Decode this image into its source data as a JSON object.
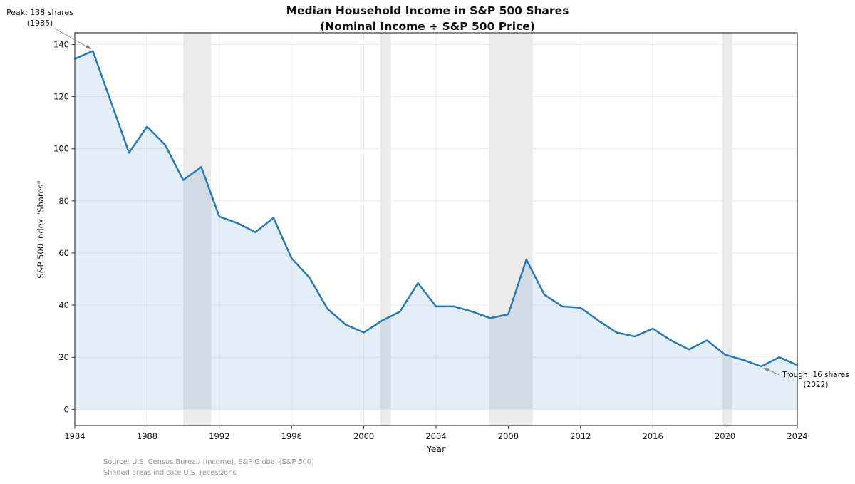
{
  "title": {
    "line1": "Median Household Income in S&P 500 Shares",
    "line2": "(Nominal Income ÷ S&P 500 Price)"
  },
  "axes": {
    "xlabel": "Year",
    "ylabel": "S&P 500 Index \"Shares\""
  },
  "annotations": {
    "peak": {
      "line1": "Peak: 138 shares",
      "line2": "(1985)"
    },
    "trough": {
      "line1": "Trough: 16 shares",
      "line2": "(2022)"
    }
  },
  "source": {
    "line1": "Source: U.S. Census Bureau (Income), S&P Global (S&P 500)",
    "line2": "Shaded areas indicate U.S. recessions"
  },
  "colors": {
    "line": "#2878b4",
    "fill": "rgba(31,119,180,0.12)",
    "recession": "#eaeaea",
    "grid": "#ececec",
    "spine": "#4a4a4a",
    "tick": "#333333",
    "text": "#1a1a1a",
    "arrow": "#888888"
  },
  "chart_data": {
    "type": "area",
    "title": "Median Household Income in S&P 500 Shares (Nominal Income ÷ S&P 500 Price)",
    "xlabel": "Year",
    "ylabel": "S&P 500 Index \"Shares\"",
    "x": [
      1984,
      1985,
      1986,
      1987,
      1988,
      1989,
      1990,
      1991,
      1992,
      1993,
      1994,
      1995,
      1996,
      1997,
      1998,
      1999,
      2000,
      2001,
      2002,
      2003,
      2004,
      2005,
      2006,
      2007,
      2008,
      2009,
      2010,
      2011,
      2012,
      2013,
      2014,
      2015,
      2016,
      2017,
      2018,
      2019,
      2020,
      2021,
      2022,
      2023,
      2024
    ],
    "series": [
      {
        "name": "Median household income in S&P 500 shares",
        "values": [
          134.5,
          137.5,
          118,
          98.5,
          108.5,
          101.5,
          88,
          93,
          74,
          71.5,
          68,
          73.5,
          58,
          50.5,
          38.5,
          32.5,
          29.5,
          34,
          37.5,
          48.5,
          39.5,
          39.5,
          37.5,
          35,
          36.5,
          57.5,
          44,
          39.5,
          39,
          34,
          29.5,
          28,
          31,
          26.5,
          23,
          26.5,
          21,
          19,
          16.5,
          20,
          17
        ]
      }
    ],
    "xlim": [
      1984,
      2024
    ],
    "ylim": [
      -6.2,
      144.5
    ],
    "xticks": [
      1984,
      1988,
      1992,
      1996,
      2000,
      2004,
      2008,
      2012,
      2016,
      2020,
      2024
    ],
    "yticks": [
      0,
      20,
      40,
      60,
      80,
      100,
      120,
      140
    ],
    "grid": true,
    "fill_baseline": 0,
    "recessions": [
      [
        1990.0,
        1991.55
      ],
      [
        2000.92,
        2001.5
      ],
      [
        2006.95,
        2009.35
      ],
      [
        2019.85,
        2020.4
      ]
    ],
    "point_annotations": [
      {
        "label": "Peak: 138 shares (1985)",
        "x": 1985,
        "y": 137.5
      },
      {
        "label": "Trough: 16 shares (2022)",
        "x": 2022,
        "y": 16.5
      }
    ]
  }
}
